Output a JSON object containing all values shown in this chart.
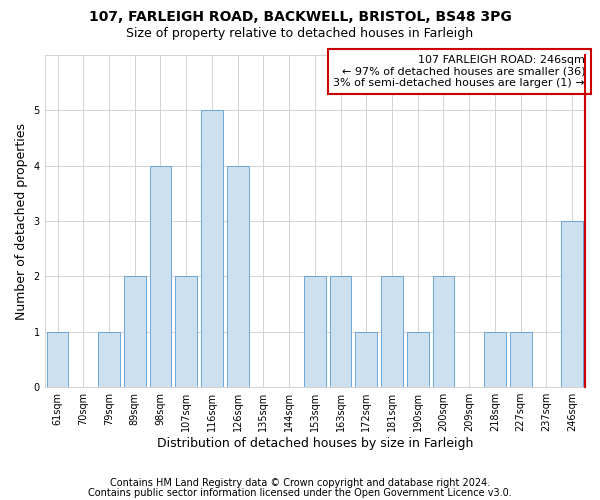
{
  "title1": "107, FARLEIGH ROAD, BACKWELL, BRISTOL, BS48 3PG",
  "title2": "Size of property relative to detached houses in Farleigh",
  "xlabel": "Distribution of detached houses by size in Farleigh",
  "ylabel": "Number of detached properties",
  "categories": [
    "61sqm",
    "70sqm",
    "79sqm",
    "89sqm",
    "98sqm",
    "107sqm",
    "116sqm",
    "126sqm",
    "135sqm",
    "144sqm",
    "153sqm",
    "163sqm",
    "172sqm",
    "181sqm",
    "190sqm",
    "200sqm",
    "209sqm",
    "218sqm",
    "227sqm",
    "237sqm",
    "246sqm"
  ],
  "values": [
    1,
    0,
    1,
    2,
    4,
    2,
    5,
    4,
    0,
    0,
    2,
    2,
    1,
    2,
    1,
    2,
    0,
    1,
    1,
    0,
    3
  ],
  "bar_color": "#cce0f0",
  "bar_edge_color": "#5b9bd5",
  "annotation_box_text": "107 FARLEIGH ROAD: 246sqm\n← 97% of detached houses are smaller (36)\n3% of semi-detached houses are larger (1) →",
  "annotation_box_color": "#ffffff",
  "annotation_box_edge_color": "#cc0000",
  "red_border_color": "#cc0000",
  "ylim": [
    0,
    6
  ],
  "yticks": [
    0,
    1,
    2,
    3,
    4,
    5
  ],
  "grid_color": "#cccccc",
  "background_color": "#ffffff",
  "footer1": "Contains HM Land Registry data © Crown copyright and database right 2024.",
  "footer2": "Contains public sector information licensed under the Open Government Licence v3.0.",
  "title1_fontsize": 10,
  "title2_fontsize": 9,
  "xlabel_fontsize": 9,
  "ylabel_fontsize": 9,
  "tick_fontsize": 7,
  "annotation_fontsize": 8,
  "footer_fontsize": 7
}
